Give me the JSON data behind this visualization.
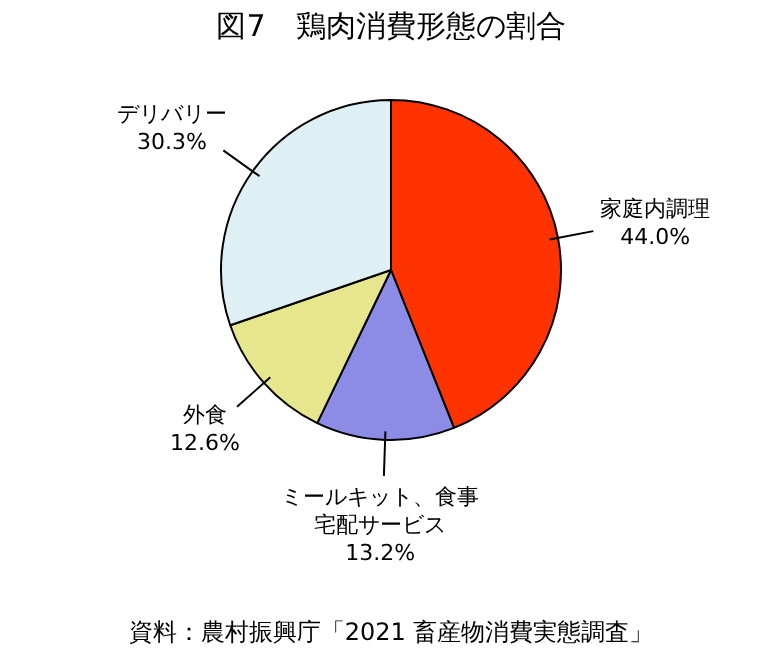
{
  "chart_data": {
    "type": "pie",
    "title": "図7　鶏肉消費形態の割合",
    "categories": [
      "家庭内調理",
      "ミールキット、食事宅配サービス",
      "外食",
      "デリバリー"
    ],
    "values": [
      44.0,
      13.2,
      12.6,
      30.3
    ],
    "value_labels": [
      "44.0%",
      "13.2%",
      "12.6%",
      "30.3%"
    ],
    "colors": [
      "#ff3300",
      "#8c8ce6",
      "#e6e68c",
      "#dff0f5"
    ],
    "legend": false,
    "annotations": [
      "資料：農村振興庁「2021 畜産物消費実態調査」"
    ]
  }
}
